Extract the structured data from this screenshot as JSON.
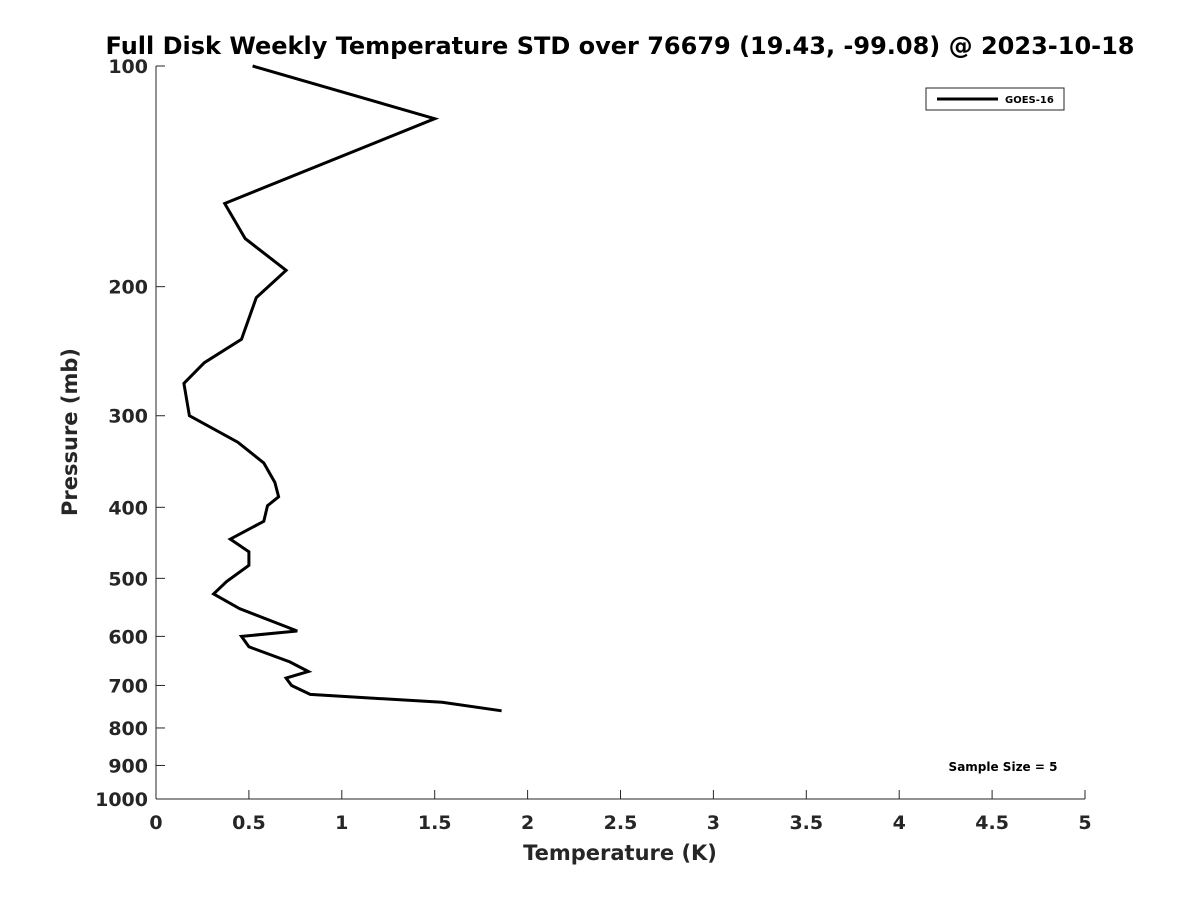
{
  "chart_data": {
    "type": "line",
    "title": "Full Disk Weekly Temperature STD over 76679 (19.43, -99.08) @ 2023-10-18",
    "xlabel": "Temperature (K)",
    "ylabel": "Pressure (mb)",
    "xlim": [
      0,
      5
    ],
    "ylim": [
      100,
      1000
    ],
    "yscale": "log",
    "y_reversed": true,
    "x_ticks": [
      "0",
      "0.5",
      "1",
      "1.5",
      "2",
      "2.5",
      "3",
      "3.5",
      "4",
      "4.5",
      "5"
    ],
    "y_ticks": [
      "100",
      "200",
      "300",
      "400",
      "500",
      "600",
      "700",
      "800",
      "900",
      "1000"
    ],
    "grid": false,
    "legend_position": "top-right",
    "annotation": "Sample Size = 5",
    "colors": {
      "line": "#000000",
      "axis": "#262626"
    },
    "series": [
      {
        "name": "GOES-16",
        "points": [
          [
            0.52,
            100
          ],
          [
            1.5,
            118
          ],
          [
            0.37,
            154
          ],
          [
            0.48,
            172
          ],
          [
            0.7,
            190
          ],
          [
            0.54,
            207
          ],
          [
            0.46,
            236
          ],
          [
            0.26,
            254
          ],
          [
            0.15,
            271
          ],
          [
            0.18,
            300
          ],
          [
            0.44,
            326
          ],
          [
            0.58,
            348
          ],
          [
            0.64,
            370
          ],
          [
            0.66,
            387
          ],
          [
            0.6,
            398
          ],
          [
            0.58,
            418
          ],
          [
            0.4,
            442
          ],
          [
            0.5,
            460
          ],
          [
            0.5,
            480
          ],
          [
            0.38,
            505
          ],
          [
            0.31,
            525
          ],
          [
            0.45,
            550
          ],
          [
            0.67,
            578
          ],
          [
            0.76,
            590
          ],
          [
            0.46,
            600
          ],
          [
            0.5,
            620
          ],
          [
            0.72,
            650
          ],
          [
            0.82,
            670
          ],
          [
            0.7,
            684
          ],
          [
            0.73,
            700
          ],
          [
            0.83,
            720
          ],
          [
            1.54,
            738
          ],
          [
            1.86,
            758
          ]
        ]
      }
    ]
  }
}
